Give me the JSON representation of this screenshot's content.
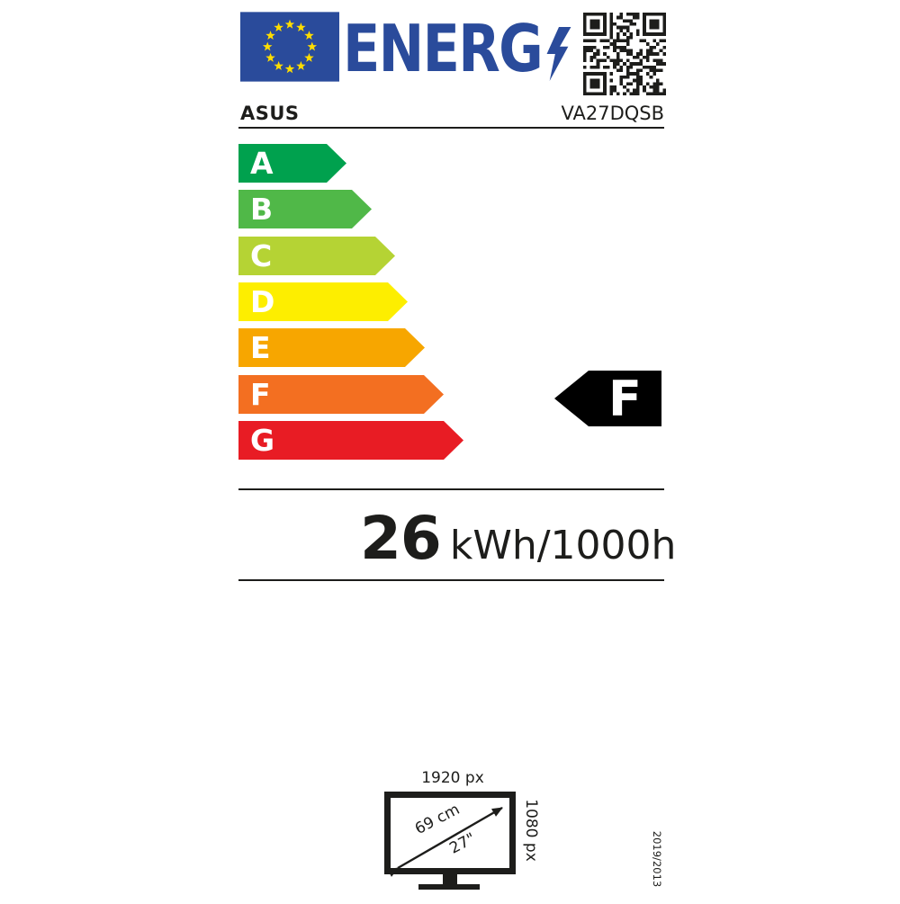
{
  "header": {
    "logo_text": "ENERG",
    "brand": "ASUS",
    "model": "VA27DQSB"
  },
  "colors": {
    "logo_blue": "#2a4b9b",
    "flag_blue": "#2a4b9b",
    "star_yellow": "#ffdd00",
    "text_black": "#1d1d1b",
    "rating_black": "#000000"
  },
  "scale": [
    {
      "grade": "A",
      "color": "#00a14e"
    },
    {
      "grade": "B",
      "color": "#50b848"
    },
    {
      "grade": "C",
      "color": "#b5d334"
    },
    {
      "grade": "D",
      "color": "#fdee00"
    },
    {
      "grade": "E",
      "color": "#f7a600"
    },
    {
      "grade": "F",
      "color": "#f36f21"
    },
    {
      "grade": "G",
      "color": "#e81c24"
    }
  ],
  "rating": {
    "grade": "F"
  },
  "consumption": {
    "value": "26",
    "unit": "kWh/1000h"
  },
  "display": {
    "width": "1920 px",
    "height": "1080 px",
    "diagonal_cm": "69 cm",
    "diagonal_inch": "27\""
  },
  "regulation": "2019/2013"
}
